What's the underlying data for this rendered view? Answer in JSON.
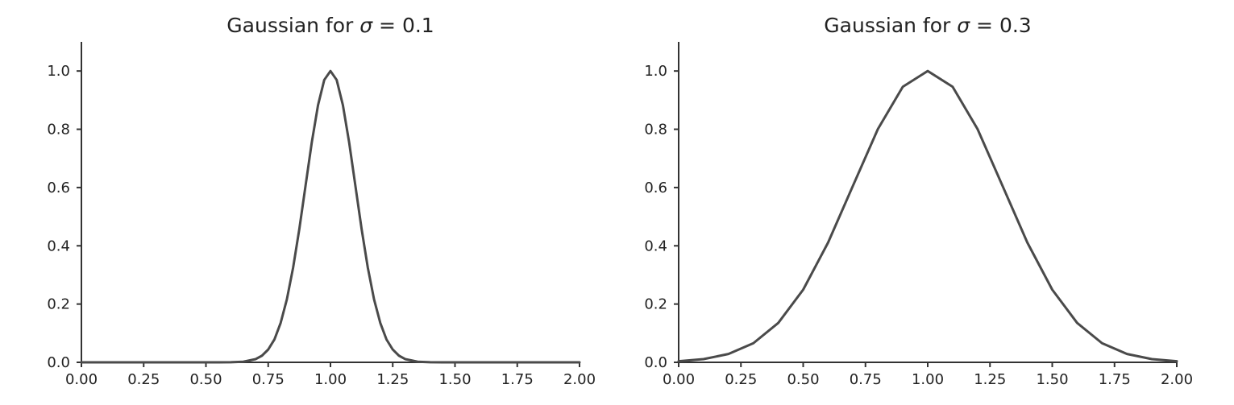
{
  "chart_data": [
    {
      "type": "line",
      "title_prefix": "Gaussian for ",
      "title_symbol": "σ",
      "title_suffix": " = 0.1",
      "xlabel": "",
      "ylabel": "",
      "xlim": [
        0,
        2
      ],
      "ylim": [
        0,
        1.1
      ],
      "xticks": [
        0,
        0.25,
        0.5,
        0.75,
        1.0,
        1.25,
        1.5,
        1.75,
        2.0
      ],
      "xtick_labels": [
        "0.00",
        "0.25",
        "0.50",
        "0.75",
        "1.00",
        "1.25",
        "1.50",
        "1.75",
        "2.00"
      ],
      "yticks": [
        0,
        0.2,
        0.4,
        0.6,
        0.8,
        1.0
      ],
      "ytick_labels": [
        "0.0",
        "0.2",
        "0.4",
        "0.6",
        "0.8",
        "1.0"
      ],
      "grid": false,
      "series": [
        {
          "color": "#4a4a4a",
          "x": [
            0.0,
            0.1,
            0.2,
            0.3,
            0.4,
            0.5,
            0.55,
            0.6,
            0.65,
            0.7,
            0.725,
            0.75,
            0.775,
            0.8,
            0.825,
            0.85,
            0.875,
            0.9,
            0.925,
            0.95,
            0.975,
            1.0,
            1.025,
            1.05,
            1.075,
            1.1,
            1.125,
            1.15,
            1.175,
            1.2,
            1.225,
            1.25,
            1.275,
            1.3,
            1.35,
            1.4,
            1.45,
            1.5,
            1.6,
            1.7,
            1.8,
            1.9,
            2.0
          ],
          "y": [
            0.0,
            0.0,
            0.0,
            0.0,
            0.0,
            0.0,
            0.0,
            0.0003,
            0.0022,
            0.0111,
            0.0228,
            0.0439,
            0.0785,
            0.1353,
            0.2163,
            0.3247,
            0.4578,
            0.6065,
            0.7548,
            0.8825,
            0.9692,
            1.0,
            0.9692,
            0.8825,
            0.7548,
            0.6065,
            0.4578,
            0.3247,
            0.2163,
            0.1353,
            0.0785,
            0.0439,
            0.0228,
            0.0111,
            0.0022,
            0.0003,
            0.0,
            0.0,
            0.0,
            0.0,
            0.0,
            0.0,
            0.0
          ]
        }
      ]
    },
    {
      "type": "line",
      "title_prefix": "Gaussian for ",
      "title_symbol": "σ",
      "title_suffix": " = 0.3",
      "xlabel": "",
      "ylabel": "",
      "xlim": [
        0,
        2
      ],
      "ylim": [
        0,
        1.1
      ],
      "xticks": [
        0,
        0.25,
        0.5,
        0.75,
        1.0,
        1.25,
        1.5,
        1.75,
        2.0
      ],
      "xtick_labels": [
        "0.00",
        "0.25",
        "0.50",
        "0.75",
        "1.00",
        "1.25",
        "1.50",
        "1.75",
        "2.00"
      ],
      "yticks": [
        0,
        0.2,
        0.4,
        0.6,
        0.8,
        1.0
      ],
      "ytick_labels": [
        "0.0",
        "0.2",
        "0.4",
        "0.6",
        "0.8",
        "1.0"
      ],
      "grid": false,
      "series": [
        {
          "color": "#4a4a4a",
          "x": [
            0.0,
            0.1,
            0.2,
            0.3,
            0.4,
            0.5,
            0.6,
            0.7,
            0.8,
            0.9,
            1.0,
            1.1,
            1.2,
            1.3,
            1.4,
            1.5,
            1.6,
            1.7,
            1.8,
            1.9,
            2.0
          ],
          "y": [
            0.0039,
            0.0111,
            0.0286,
            0.0657,
            0.1353,
            0.2494,
            0.4111,
            0.6065,
            0.8007,
            0.946,
            1.0,
            0.946,
            0.8007,
            0.6065,
            0.4111,
            0.2494,
            0.1353,
            0.0657,
            0.0286,
            0.0111,
            0.0039
          ]
        }
      ]
    }
  ]
}
